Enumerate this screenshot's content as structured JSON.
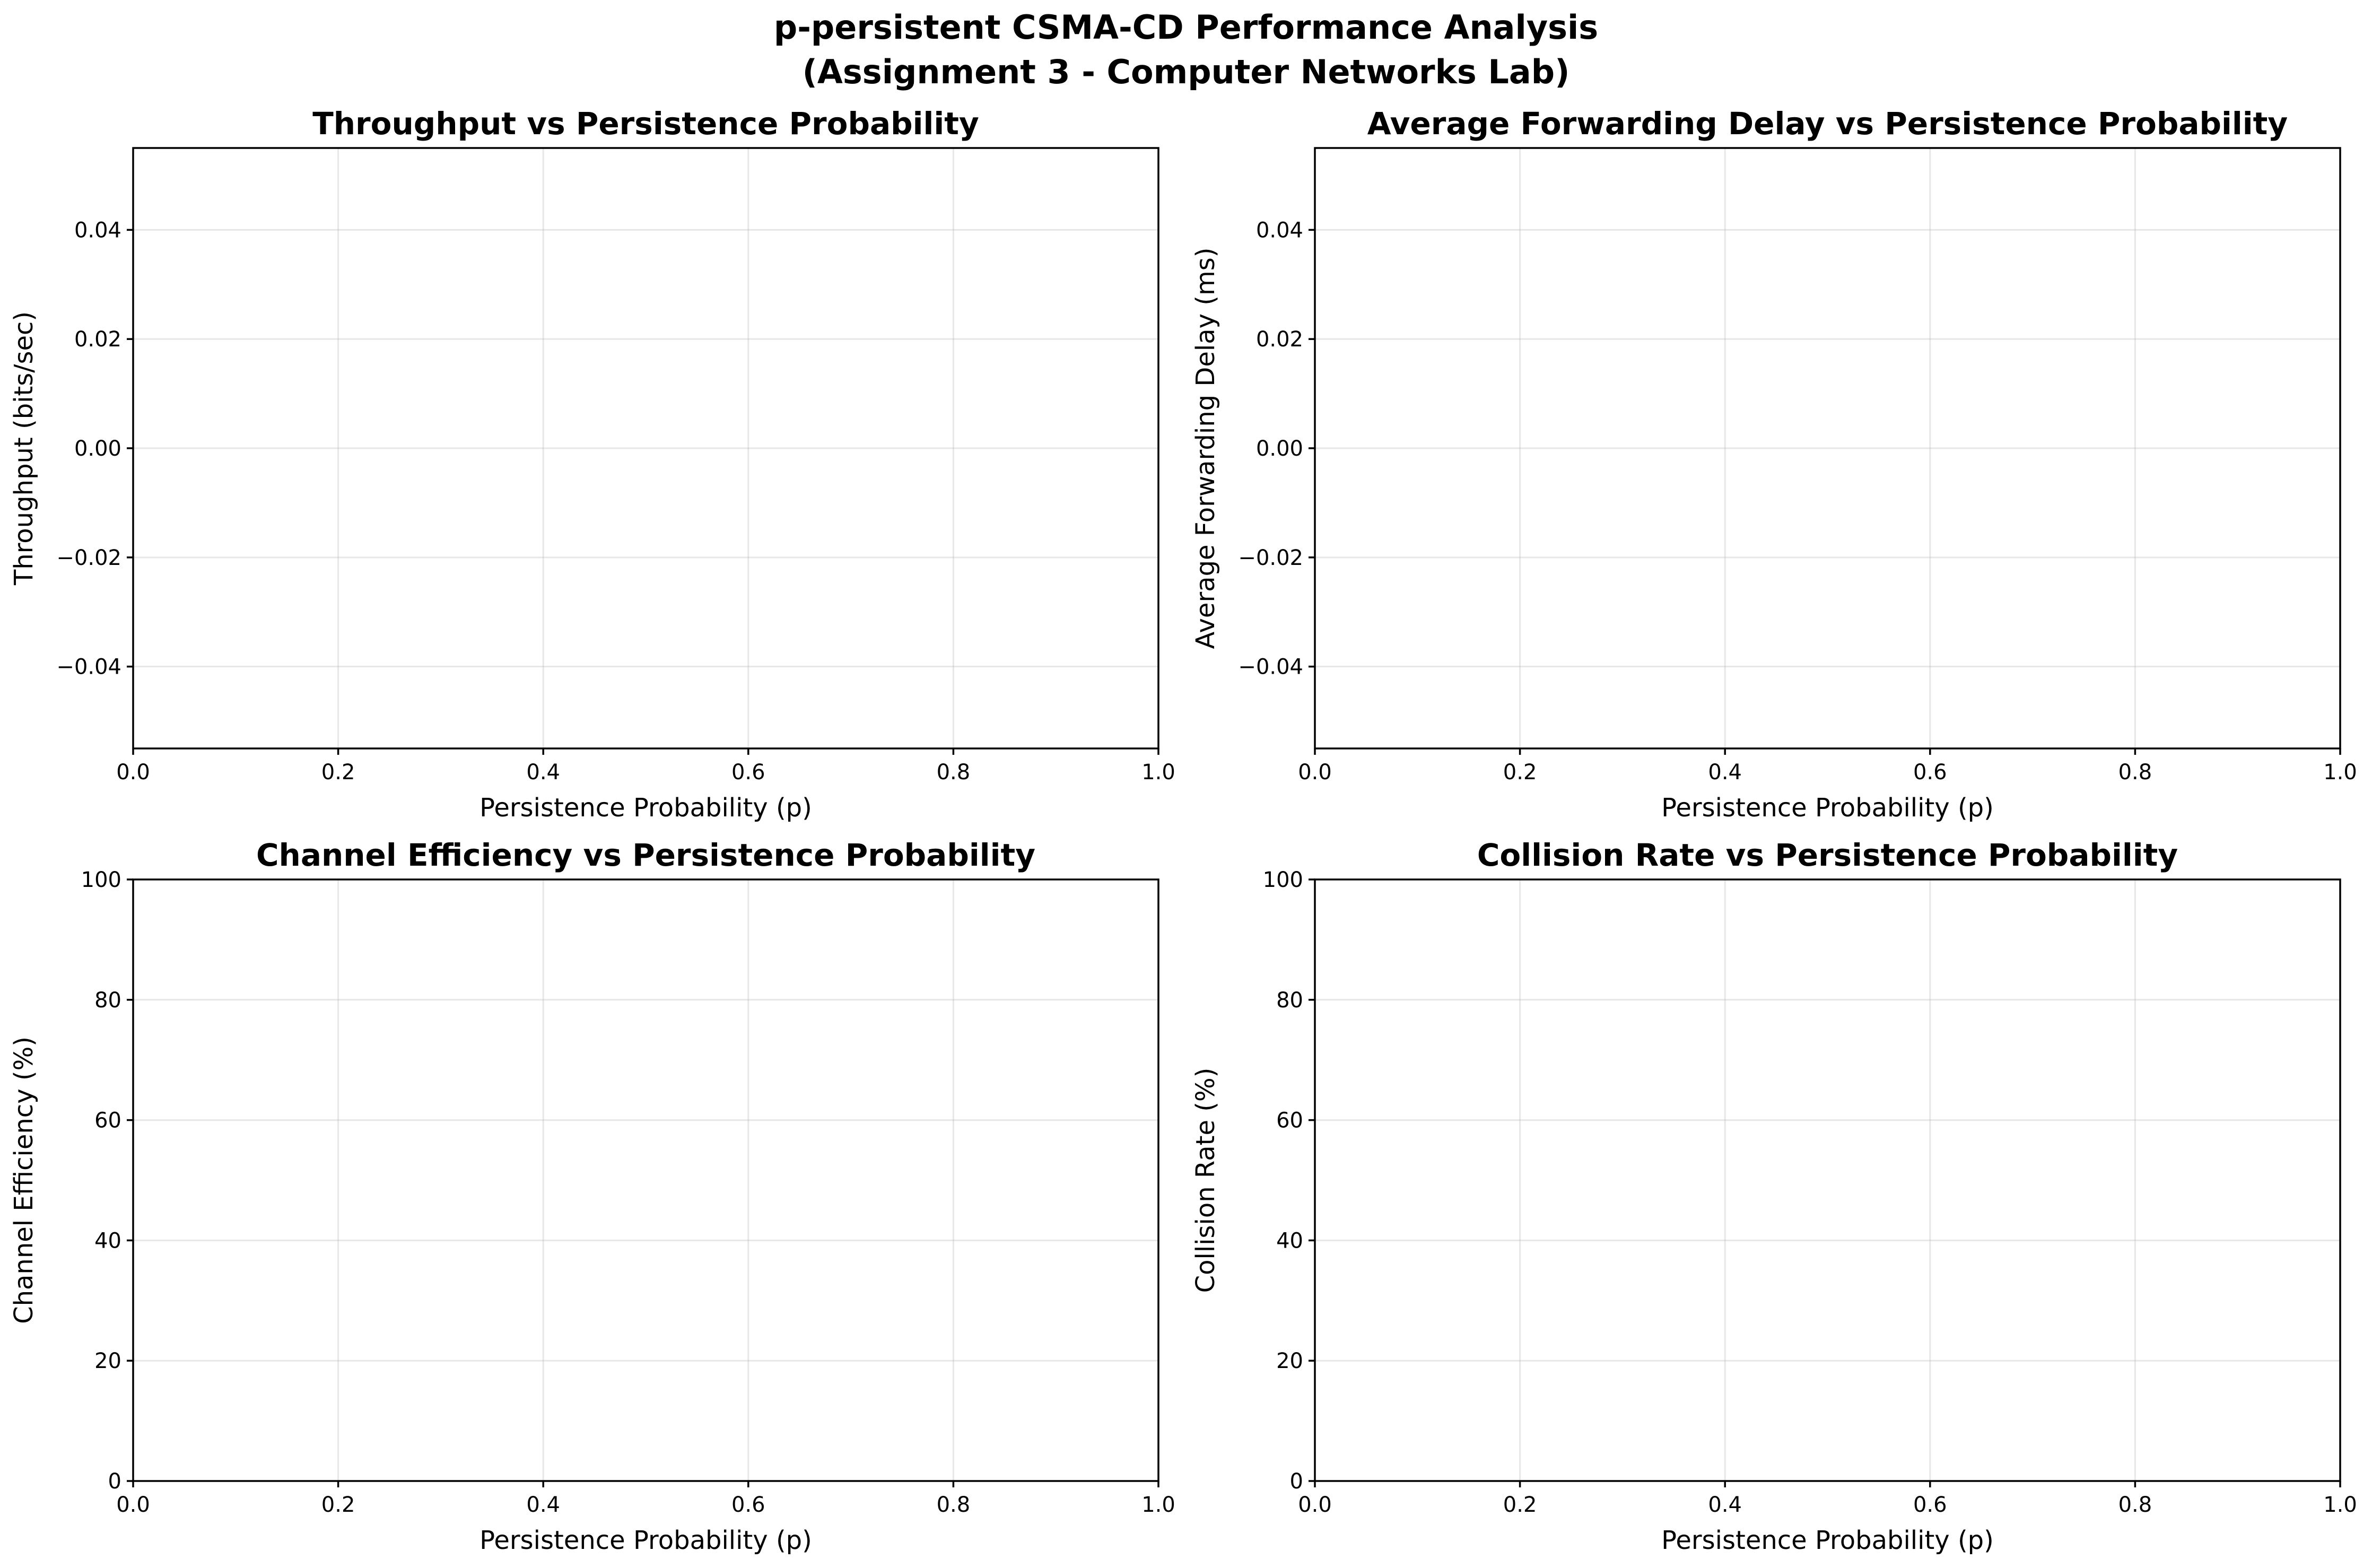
{
  "suptitle": "p-persistent CSMA-CD Performance Analysis\n(Assignment 3 - Computer Networks Lab)",
  "chart_data": [
    {
      "type": "line",
      "title": "Throughput vs Persistence Probability",
      "xlabel": "Persistence Probability (p)",
      "ylabel": "Throughput (bits/sec)",
      "xlim": [
        0.0,
        1.0
      ],
      "ylim": [
        -0.055,
        0.055
      ],
      "xticks": [
        "0.0",
        "0.2",
        "0.4",
        "0.6",
        "0.8",
        "1.0"
      ],
      "xtick_values": [
        0.0,
        0.2,
        0.4,
        0.6,
        0.8,
        1.0
      ],
      "yticks": [
        "−0.04",
        "−0.02",
        "0.00",
        "0.02",
        "0.04"
      ],
      "ytick_values": [
        -0.04,
        -0.02,
        0.0,
        0.02,
        0.04
      ],
      "grid": true,
      "series": []
    },
    {
      "type": "line",
      "title": "Average Forwarding Delay vs Persistence Probability",
      "xlabel": "Persistence Probability (p)",
      "ylabel": "Average Forwarding Delay (ms)",
      "xlim": [
        0.0,
        1.0
      ],
      "ylim": [
        -0.055,
        0.055
      ],
      "xticks": [
        "0.0",
        "0.2",
        "0.4",
        "0.6",
        "0.8",
        "1.0"
      ],
      "xtick_values": [
        0.0,
        0.2,
        0.4,
        0.6,
        0.8,
        1.0
      ],
      "yticks": [
        "−0.04",
        "−0.02",
        "0.00",
        "0.02",
        "0.04"
      ],
      "ytick_values": [
        -0.04,
        -0.02,
        0.0,
        0.02,
        0.04
      ],
      "grid": true,
      "series": []
    },
    {
      "type": "line",
      "title": "Channel Efficiency vs Persistence Probability",
      "xlabel": "Persistence Probability (p)",
      "ylabel": "Channel Efficiency (%)",
      "xlim": [
        0.0,
        1.0
      ],
      "ylim": [
        0,
        100
      ],
      "xticks": [
        "0.0",
        "0.2",
        "0.4",
        "0.6",
        "0.8",
        "1.0"
      ],
      "xtick_values": [
        0.0,
        0.2,
        0.4,
        0.6,
        0.8,
        1.0
      ],
      "yticks": [
        "0",
        "20",
        "40",
        "60",
        "80",
        "100"
      ],
      "ytick_values": [
        0,
        20,
        40,
        60,
        80,
        100
      ],
      "grid": true,
      "series": []
    },
    {
      "type": "line",
      "title": "Collision Rate vs Persistence Probability",
      "xlabel": "Persistence Probability (p)",
      "ylabel": "Collision Rate (%)",
      "xlim": [
        0.0,
        1.0
      ],
      "ylim": [
        0,
        100
      ],
      "xticks": [
        "0.0",
        "0.2",
        "0.4",
        "0.6",
        "0.8",
        "1.0"
      ],
      "xtick_values": [
        0.0,
        0.2,
        0.4,
        0.6,
        0.8,
        1.0
      ],
      "yticks": [
        "0",
        "20",
        "40",
        "60",
        "80",
        "100"
      ],
      "ytick_values": [
        0,
        20,
        40,
        60,
        80,
        100
      ],
      "grid": true,
      "series": []
    }
  ]
}
